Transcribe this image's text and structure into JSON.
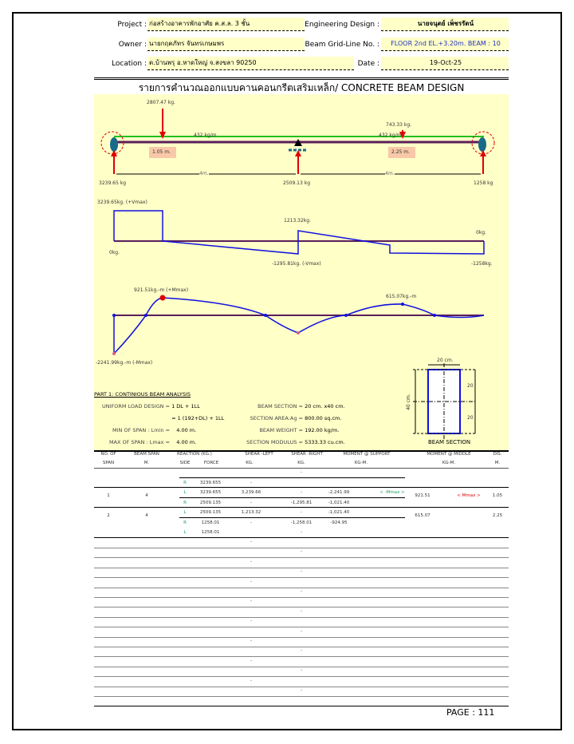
{
  "header": {
    "project_label": "Project :",
    "project": "ก่อสร้างอาคารพักอาศัย ค.ส.ล. 3 ชั้น",
    "engineer_label": "Engineering Design :",
    "engineer": "นายจนุตย์  เพ็ชรรัตน์",
    "owner_label": "Owner :",
    "owner": "นายกฤตภัทร  จันทรเกษมพร",
    "grid_label": "Beam Grid-Line No. :",
    "grid": "FLOOR 2nd EL.+3.20m. BEAM : 10",
    "location_label": "Location :",
    "location": "ต.บ้านพรุ อ.หาดใหญ่ จ.สงขลา  90250",
    "date_label": "Date :",
    "date": "19-Oct-25"
  },
  "title": "รายการคำนวณออกแบบคานคอนกรีตเสริมเหล็ก/ CONCRETE BEAM DESIGN",
  "load_diagram": {
    "p1": "2807.47 kg.",
    "p2": "743.33 kg.",
    "w1": "432 kg/m",
    "w2": "432 kg/m",
    "a1": "1.05 m.",
    "a2": "2.25 m.",
    "span1": "4m.",
    "span2": "4m.",
    "r1": "3239.65 kg",
    "r2": "2509.13 kg",
    "r3": "1258 kg"
  },
  "shear_diagram": {
    "vmax": "3239.65kg. (+Vmax)",
    "v2": "1213.32kg.",
    "vmin": "-1295.81kg. (-Vmax)",
    "zero_left": "0kg.",
    "zero_right": "0kg.",
    "v_end": "-1258kg."
  },
  "moment_diagram": {
    "mmax": "921.51kg.-m (+Mmax)",
    "m2": "615.07kg.-m",
    "mmin": "-2241.99kg.-m (-Mmax)"
  },
  "section": {
    "width": "20 cm.",
    "height": "40 cm.",
    "top": "20",
    "bottom": "20",
    "caption": "BEAM SECTION"
  },
  "part1": {
    "heading": "PART 1: CONTINIOUS BEAM ANALYSIS",
    "items": [
      {
        "label": "UNIFORM LOAD DESIGN =",
        "value": "1 DL + 1LL"
      },
      {
        "label": "",
        "value": "= 1 (192+DL) + 1LL"
      },
      {
        "label": "MIN OF SPAN : Lmin =",
        "value": "4.00 m."
      },
      {
        "label": "MAX OF SPAN : Lmax =",
        "value": "4.00 m."
      }
    ],
    "items2": [
      {
        "label": "BEAM SECTION =",
        "value": "20 cm. x40 cm."
      },
      {
        "label": "SECTION AREA:Ag =",
        "value": "800.00 sq.cm."
      },
      {
        "label": "BEAM  WEIGHT =",
        "value": "192.00 kg/m."
      },
      {
        "label": "SECTION MODULUS =",
        "value": "5333.33 cu.cm."
      }
    ]
  },
  "table": {
    "h1": [
      "NO. OF",
      "BEAM SPAN",
      "REACTION (KG.)",
      "SHEAR -LEFT",
      "SHEAR -RIGHT",
      "MOMENT @ SUPPORT",
      "MOMENT @ MIDDLE",
      "DIS."
    ],
    "h2": [
      "SPAN",
      "M.",
      "SIDE",
      "FORCE",
      "KG.",
      "KG.",
      "KG-M.",
      "KG-M.",
      "M."
    ],
    "rows": [
      [
        "",
        "",
        "",
        "",
        "",
        "-",
        "",
        ""
      ],
      [
        "",
        "",
        "R",
        "3239.655",
        "-",
        "",
        "",
        ""
      ],
      [
        "",
        "",
        "L",
        "3239.655",
        "3,239.66",
        "-",
        "-2,241.99",
        "< -Mmax >"
      ],
      [
        "",
        "",
        "R",
        "2509.135",
        "-",
        "-1,295.81",
        "-1,021.40",
        ""
      ],
      [
        "",
        "",
        "L",
        "2509.135",
        "1,213.32",
        "-",
        "-1,021.40",
        ""
      ],
      [
        "",
        "",
        "R",
        "1258.01",
        "-",
        "-1,258.01",
        "-924.95",
        ""
      ],
      [
        "",
        "",
        "L",
        "1258.01",
        "",
        "-",
        "",
        ""
      ]
    ],
    "spans": [
      {
        "no": "1",
        "span": "4",
        "mmid": "921.51",
        "tag": "< Mmax >",
        "dis": "1.05"
      },
      {
        "no": "2",
        "span": "4",
        "mmid": "615.07",
        "tag": "",
        "dis": "2.25"
      }
    ],
    "dash": "-"
  },
  "footer": {
    "page": "PAGE : 111"
  },
  "colors": {
    "load": "#e00000",
    "beam": "#5a1e5a",
    "diagram": "#1010e0",
    "udl": "#20c020",
    "fill": "#ffffc8"
  }
}
